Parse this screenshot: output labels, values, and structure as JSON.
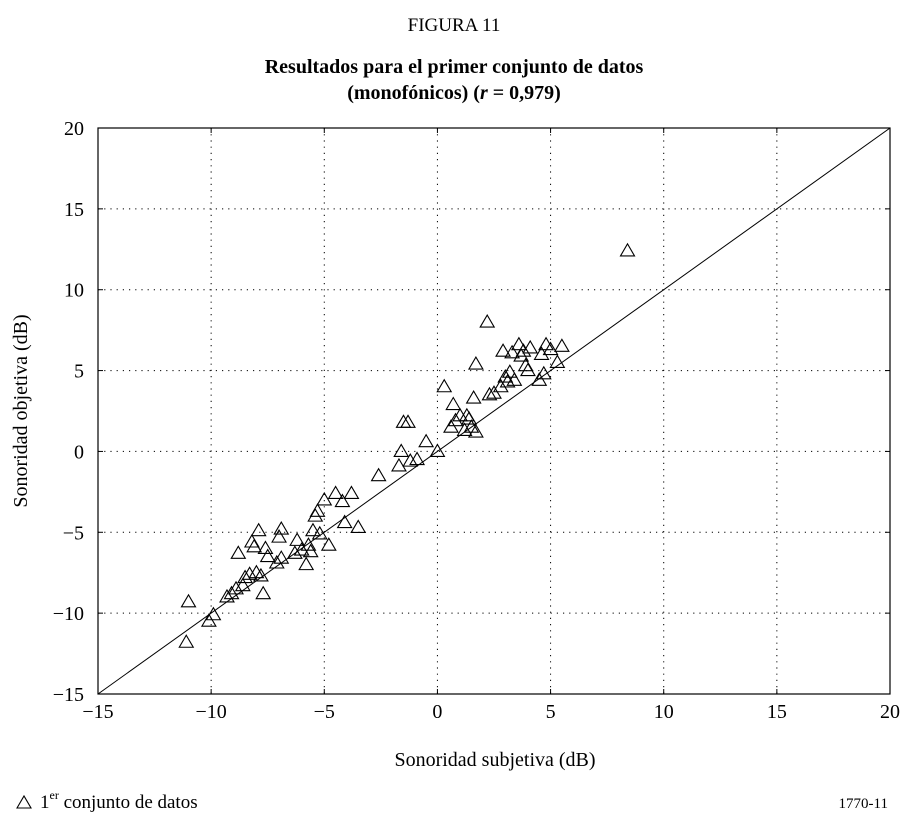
{
  "figure": {
    "label": "FIGURA 11",
    "title_line1": "Resultados para el primer conjunto de datos",
    "title_line2_pre": "(monofónicos) (",
    "title_line2_var": "r",
    "title_line2_post": " = 0,979)",
    "code": "1770-11"
  },
  "legend": {
    "marker": "triangle",
    "label_num": "1",
    "label_sup": "er",
    "label_rest": " conjunto de datos"
  },
  "chart_data": {
    "type": "scatter",
    "xlabel": "Sonoridad subjetiva (dB)",
    "ylabel": "Sonoridad objetiva (dB)",
    "xlim": [
      -15,
      20
    ],
    "ylim": [
      -15,
      20
    ],
    "xticks": [
      -15,
      -10,
      -5,
      0,
      5,
      10,
      15,
      20
    ],
    "yticks": [
      -15,
      -10,
      -5,
      0,
      5,
      10,
      15,
      20
    ],
    "xtick_labels": [
      "−15",
      "−10",
      "−5",
      "0",
      "5",
      "10",
      "15",
      "20"
    ],
    "ytick_labels": [
      "−15",
      "−10",
      "−5",
      "0",
      "5",
      "10",
      "15",
      "20"
    ],
    "grid": "dotted",
    "reference_line": {
      "from": [
        -15,
        -15
      ],
      "to": [
        20,
        20
      ]
    },
    "series": [
      {
        "marker": "triangle",
        "points": [
          [
            -11.1,
            -11.8
          ],
          [
            -11.0,
            -9.3
          ],
          [
            -10.1,
            -10.5
          ],
          [
            -9.9,
            -10.1
          ],
          [
            -9.3,
            -9.0
          ],
          [
            -9.1,
            -8.8
          ],
          [
            -8.9,
            -8.5
          ],
          [
            -8.8,
            -6.3
          ],
          [
            -8.6,
            -8.3
          ],
          [
            -8.5,
            -7.8
          ],
          [
            -8.3,
            -7.6
          ],
          [
            -8.2,
            -5.6
          ],
          [
            -8.1,
            -5.9
          ],
          [
            -8.0,
            -7.5
          ],
          [
            -7.9,
            -4.9
          ],
          [
            -7.8,
            -7.7
          ],
          [
            -7.7,
            -8.8
          ],
          [
            -7.6,
            -6.0
          ],
          [
            -7.5,
            -6.5
          ],
          [
            -7.1,
            -6.9
          ],
          [
            -7.0,
            -5.3
          ],
          [
            -6.9,
            -4.8
          ],
          [
            -6.9,
            -6.6
          ],
          [
            -6.3,
            -6.3
          ],
          [
            -6.2,
            -5.5
          ],
          [
            -6.0,
            -6.1
          ],
          [
            -5.8,
            -7.0
          ],
          [
            -5.7,
            -5.8
          ],
          [
            -5.6,
            -6.2
          ],
          [
            -5.5,
            -4.9
          ],
          [
            -5.4,
            -4.0
          ],
          [
            -5.3,
            -3.7
          ],
          [
            -5.2,
            -5.1
          ],
          [
            -5.0,
            -3.0
          ],
          [
            -4.8,
            -5.8
          ],
          [
            -4.5,
            -2.6
          ],
          [
            -4.2,
            -3.1
          ],
          [
            -4.1,
            -4.4
          ],
          [
            -3.8,
            -2.6
          ],
          [
            -3.5,
            -4.7
          ],
          [
            -2.6,
            -1.5
          ],
          [
            -1.7,
            -0.9
          ],
          [
            -1.6,
            0.0
          ],
          [
            -1.5,
            1.8
          ],
          [
            -1.3,
            1.8
          ],
          [
            -1.2,
            -0.6
          ],
          [
            -0.9,
            -0.5
          ],
          [
            -0.5,
            0.6
          ],
          [
            0.0,
            0.0
          ],
          [
            0.3,
            4.0
          ],
          [
            0.6,
            1.5
          ],
          [
            0.7,
            2.9
          ],
          [
            0.8,
            1.9
          ],
          [
            1.0,
            2.2
          ],
          [
            1.2,
            1.3
          ],
          [
            1.3,
            2.2
          ],
          [
            1.4,
            2.0
          ],
          [
            1.5,
            1.5
          ],
          [
            1.6,
            3.3
          ],
          [
            1.7,
            1.2
          ],
          [
            1.7,
            5.4
          ],
          [
            2.2,
            8.0
          ],
          [
            2.3,
            3.5
          ],
          [
            2.5,
            3.6
          ],
          [
            2.8,
            4.0
          ],
          [
            2.9,
            6.2
          ],
          [
            3.0,
            4.6
          ],
          [
            3.1,
            4.3
          ],
          [
            3.2,
            4.9
          ],
          [
            3.3,
            6.1
          ],
          [
            3.4,
            4.4
          ],
          [
            3.6,
            6.6
          ],
          [
            3.7,
            5.9
          ],
          [
            3.8,
            6.2
          ],
          [
            3.9,
            5.3
          ],
          [
            4.0,
            5.0
          ],
          [
            4.1,
            6.4
          ],
          [
            4.5,
            4.4
          ],
          [
            4.6,
            6.0
          ],
          [
            4.7,
            4.8
          ],
          [
            4.8,
            6.6
          ],
          [
            5.0,
            6.3
          ],
          [
            5.3,
            5.5
          ],
          [
            5.5,
            6.5
          ],
          [
            8.4,
            12.4
          ]
        ]
      }
    ]
  }
}
